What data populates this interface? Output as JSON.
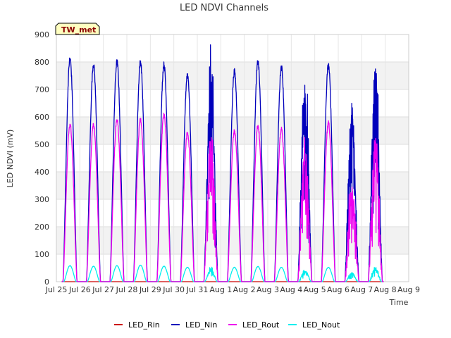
{
  "chart_data": {
    "type": "line",
    "title": "LED NDVI Channels",
    "xlabel": "Time",
    "ylabel": "LED NDVI (mV)",
    "ylim": [
      0,
      900
    ],
    "yticks": [
      0,
      100,
      200,
      300,
      400,
      500,
      600,
      700,
      800,
      900
    ],
    "xlim": [
      0,
      15
    ],
    "xtick_labels": [
      "Jul 25",
      "Jul 26",
      "Jul 27",
      "Jul 28",
      "Jul 29",
      "Jul 30",
      "Jul 31",
      "Aug 1",
      "Aug 2",
      "Aug 3",
      "Aug 4",
      "Aug 5",
      "Aug 6",
      "Aug 7",
      "Aug 8",
      "Aug 9"
    ],
    "grid": true,
    "background_bands": true,
    "legend_position": "bottom",
    "annotation": "TW_met",
    "day_labels": [
      "Jul 25",
      "Jul 26",
      "Jul 27",
      "Jul 28",
      "Jul 29",
      "Jul 30",
      "Jul 31",
      "Aug 1",
      "Aug 2",
      "Aug 3",
      "Aug 4",
      "Aug 5",
      "Aug 6",
      "Aug 7"
    ],
    "series": [
      {
        "name": "LED_Rin",
        "color": "#cc0000",
        "daily_peak": [
          0,
          0,
          0,
          0,
          0,
          0,
          0,
          0,
          0,
          0,
          0,
          0,
          0,
          0
        ],
        "noisy": [
          false,
          false,
          false,
          false,
          false,
          false,
          false,
          false,
          false,
          false,
          false,
          false,
          false,
          false
        ]
      },
      {
        "name": "LED_Nin",
        "color": "#0000bb",
        "daily_peak": [
          812,
          790,
          800,
          800,
          790,
          755,
          735,
          765,
          800,
          782,
          700,
          788,
          625,
          750
        ],
        "noisy": [
          false,
          false,
          false,
          false,
          false,
          false,
          true,
          false,
          false,
          false,
          true,
          false,
          true,
          true
        ]
      },
      {
        "name": "LED_Rout",
        "color": "#ee00ee",
        "daily_peak": [
          572,
          570,
          590,
          592,
          610,
          540,
          510,
          548,
          568,
          555,
          470,
          578,
          340,
          515
        ],
        "noisy": [
          false,
          false,
          false,
          false,
          false,
          false,
          true,
          false,
          false,
          false,
          true,
          false,
          true,
          true
        ]
      },
      {
        "name": "LED_Nout",
        "color": "#00eeee",
        "daily_peak": [
          58,
          56,
          58,
          60,
          56,
          52,
          45,
          52,
          55,
          52,
          42,
          52,
          32,
          48
        ],
        "noisy": [
          false,
          false,
          false,
          false,
          false,
          false,
          true,
          false,
          false,
          false,
          true,
          false,
          true,
          true
        ]
      }
    ]
  }
}
